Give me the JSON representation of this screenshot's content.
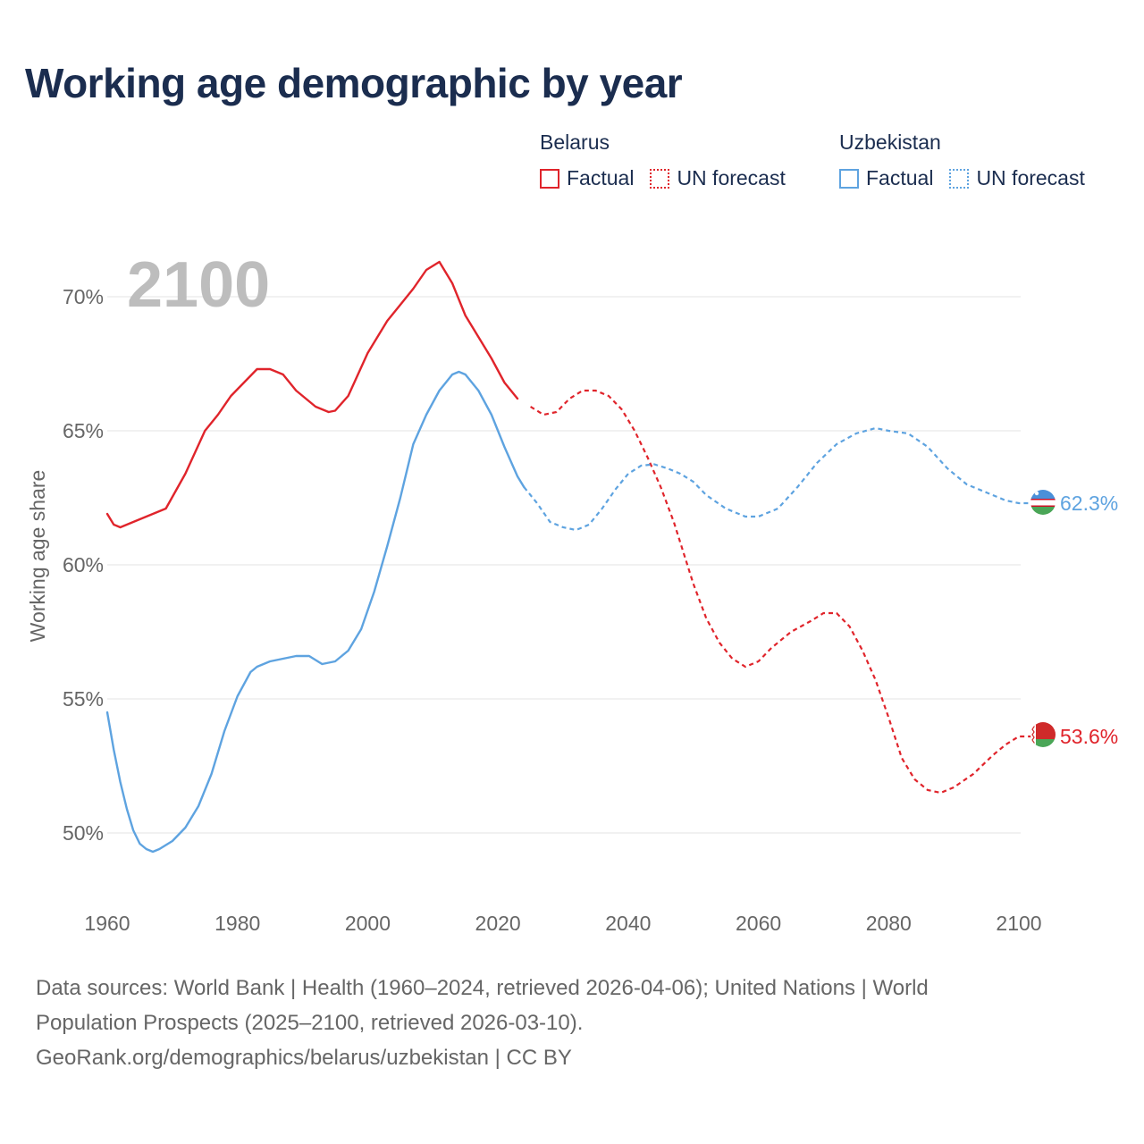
{
  "title": "Working age demographic by year",
  "legend": [
    {
      "country": "Belarus",
      "color": "#e0242b",
      "factual_label": "Factual",
      "forecast_label": "UN forecast"
    },
    {
      "country": "Uzbekistan",
      "color": "#5ea3e0",
      "factual_label": "Factual",
      "forecast_label": "UN forecast"
    }
  ],
  "year_watermark": "2100",
  "source": {
    "line1": "Data sources: World Bank | Health (1960–2024, retrieved 2026-04-06); United Nations | World",
    "line2": "Population Prospects (2025–2100, retrieved 2026-03-10).",
    "line3": "GeoRank.org/demographics/belarus/uzbekistan | CC BY"
  },
  "chart_data": {
    "type": "line",
    "title": "Working age demographic by year",
    "xlabel": "",
    "ylabel": "Working age share",
    "xlim": [
      1960,
      2100
    ],
    "ylim": [
      48,
      72
    ],
    "x_ticks": [
      1960,
      1980,
      2000,
      2020,
      2040,
      2060,
      2080,
      2100
    ],
    "x_tick_labels": [
      "1960",
      "1980",
      "2000",
      "2020",
      "2040",
      "2060",
      "2080",
      "2100"
    ],
    "y_ticks": [
      50,
      55,
      60,
      65,
      70
    ],
    "y_tick_labels": [
      "50%",
      "55%",
      "60%",
      "65%",
      "70%"
    ],
    "grid": true,
    "factual_end_year": 2024,
    "series": [
      {
        "name": "Belarus",
        "color": "#e0242b",
        "end_label": "53.6%",
        "points": [
          [
            1960,
            61.9
          ],
          [
            1961,
            61.5
          ],
          [
            1962,
            61.4
          ],
          [
            1965,
            61.7
          ],
          [
            1969,
            62.1
          ],
          [
            1972,
            63.4
          ],
          [
            1975,
            65.0
          ],
          [
            1977,
            65.6
          ],
          [
            1979,
            66.3
          ],
          [
            1981,
            66.8
          ],
          [
            1983,
            67.3
          ],
          [
            1985,
            67.3
          ],
          [
            1987,
            67.1
          ],
          [
            1989,
            66.5
          ],
          [
            1992,
            65.9
          ],
          [
            1994,
            65.7
          ],
          [
            1995,
            65.75
          ],
          [
            1997,
            66.3
          ],
          [
            2000,
            67.9
          ],
          [
            2003,
            69.1
          ],
          [
            2005,
            69.7
          ],
          [
            2007,
            70.3
          ],
          [
            2009,
            71.0
          ],
          [
            2011,
            71.3
          ],
          [
            2013,
            70.5
          ],
          [
            2015,
            69.3
          ],
          [
            2017,
            68.5
          ],
          [
            2019,
            67.7
          ],
          [
            2021,
            66.8
          ],
          [
            2023,
            66.2
          ],
          [
            2025,
            65.9
          ],
          [
            2027,
            65.6
          ],
          [
            2029,
            65.7
          ],
          [
            2031,
            66.2
          ],
          [
            2033,
            66.5
          ],
          [
            2035,
            66.5
          ],
          [
            2037,
            66.3
          ],
          [
            2039,
            65.8
          ],
          [
            2041,
            65.0
          ],
          [
            2043,
            64.0
          ],
          [
            2045,
            62.9
          ],
          [
            2047,
            61.6
          ],
          [
            2050,
            59.3
          ],
          [
            2052,
            58.0
          ],
          [
            2054,
            57.1
          ],
          [
            2056,
            56.5
          ],
          [
            2058,
            56.2
          ],
          [
            2060,
            56.4
          ],
          [
            2062,
            56.9
          ],
          [
            2065,
            57.5
          ],
          [
            2068,
            57.9
          ],
          [
            2070,
            58.2
          ],
          [
            2072,
            58.2
          ],
          [
            2074,
            57.7
          ],
          [
            2076,
            56.8
          ],
          [
            2078,
            55.7
          ],
          [
            2080,
            54.3
          ],
          [
            2082,
            52.8
          ],
          [
            2084,
            52.0
          ],
          [
            2086,
            51.6
          ],
          [
            2088,
            51.5
          ],
          [
            2090,
            51.7
          ],
          [
            2093,
            52.2
          ],
          [
            2096,
            52.9
          ],
          [
            2098,
            53.3
          ],
          [
            2100,
            53.6
          ],
          [
            2103,
            53.6
          ]
        ]
      },
      {
        "name": "Uzbekistan",
        "color": "#5ea3e0",
        "end_label": "62.3%",
        "points": [
          [
            1960,
            54.5
          ],
          [
            1961,
            53.1
          ],
          [
            1962,
            51.9
          ],
          [
            1963,
            50.9
          ],
          [
            1964,
            50.1
          ],
          [
            1965,
            49.6
          ],
          [
            1966,
            49.4
          ],
          [
            1967,
            49.3
          ],
          [
            1968,
            49.4
          ],
          [
            1970,
            49.7
          ],
          [
            1972,
            50.2
          ],
          [
            1974,
            51.0
          ],
          [
            1976,
            52.2
          ],
          [
            1978,
            53.8
          ],
          [
            1980,
            55.1
          ],
          [
            1982,
            56.0
          ],
          [
            1983,
            56.2
          ],
          [
            1985,
            56.4
          ],
          [
            1987,
            56.5
          ],
          [
            1989,
            56.6
          ],
          [
            1991,
            56.6
          ],
          [
            1993,
            56.3
          ],
          [
            1995,
            56.4
          ],
          [
            1997,
            56.8
          ],
          [
            1999,
            57.6
          ],
          [
            2001,
            59.0
          ],
          [
            2003,
            60.7
          ],
          [
            2005,
            62.5
          ],
          [
            2007,
            64.5
          ],
          [
            2009,
            65.6
          ],
          [
            2011,
            66.5
          ],
          [
            2013,
            67.1
          ],
          [
            2014,
            67.2
          ],
          [
            2015,
            67.1
          ],
          [
            2017,
            66.5
          ],
          [
            2019,
            65.6
          ],
          [
            2021,
            64.4
          ],
          [
            2023,
            63.3
          ],
          [
            2024,
            62.9
          ],
          [
            2026,
            62.3
          ],
          [
            2028,
            61.6
          ],
          [
            2030,
            61.4
          ],
          [
            2032,
            61.3
          ],
          [
            2034,
            61.5
          ],
          [
            2036,
            62.1
          ],
          [
            2038,
            62.8
          ],
          [
            2040,
            63.4
          ],
          [
            2042,
            63.7
          ],
          [
            2044,
            63.75
          ],
          [
            2046,
            63.6
          ],
          [
            2048,
            63.4
          ],
          [
            2050,
            63.1
          ],
          [
            2052,
            62.6
          ],
          [
            2055,
            62.1
          ],
          [
            2058,
            61.8
          ],
          [
            2060,
            61.8
          ],
          [
            2063,
            62.1
          ],
          [
            2066,
            62.9
          ],
          [
            2069,
            63.8
          ],
          [
            2072,
            64.5
          ],
          [
            2075,
            64.9
          ],
          [
            2078,
            65.1
          ],
          [
            2080,
            65.0
          ],
          [
            2083,
            64.9
          ],
          [
            2086,
            64.4
          ],
          [
            2089,
            63.6
          ],
          [
            2092,
            63.0
          ],
          [
            2095,
            62.7
          ],
          [
            2098,
            62.4
          ],
          [
            2100,
            62.3
          ],
          [
            2103,
            62.3
          ]
        ]
      }
    ]
  }
}
